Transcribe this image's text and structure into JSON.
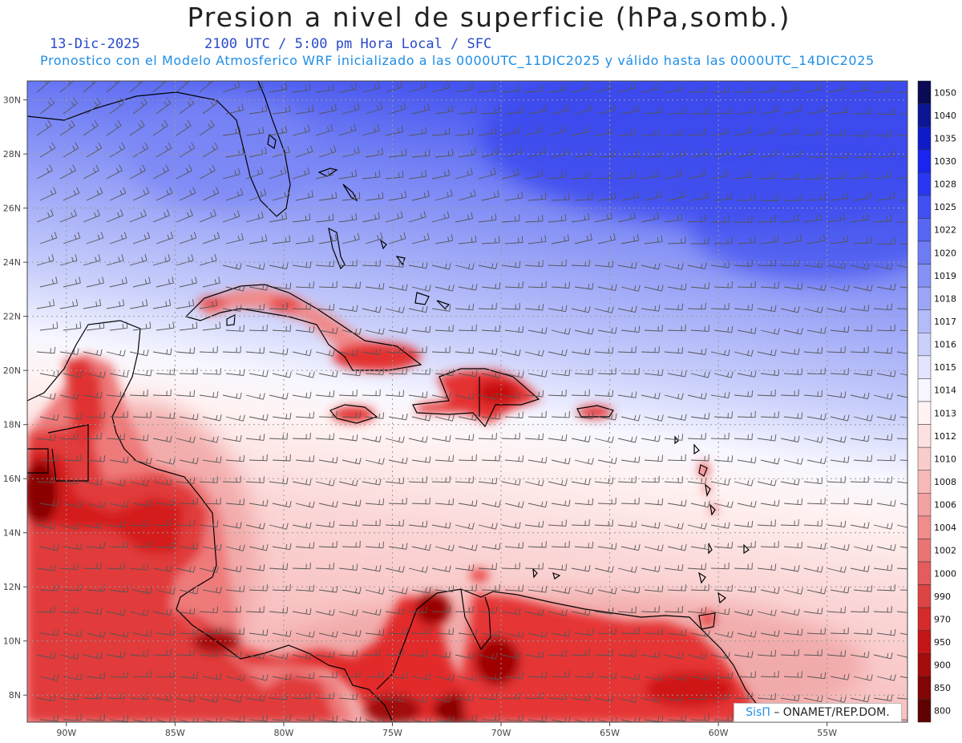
{
  "header": {
    "title": "Presion a nivel de superficie (hPa,somb.)",
    "date": "13-Dic-2025",
    "time_info": "2100 UTC / 5:00 pm Hora Local / SFC",
    "model_info": "Pronostico con el Modelo Atmosferico WRF inicializado a las 0000UTC_11DIC2025 y válido hasta las  0000UTC_14DIC2025"
  },
  "map": {
    "lat_labels": [
      "30N",
      "28N",
      "26N",
      "24N",
      "22N",
      "20N",
      "18N",
      "16N",
      "14N",
      "12N",
      "10N",
      "8N"
    ],
    "lon_labels": [
      "90W",
      "85W",
      "80W",
      "75W",
      "70W",
      "65W",
      "60W",
      "55W"
    ],
    "lat_range": [
      7,
      30.7
    ],
    "lon_range": [
      -91.8,
      -51.3
    ],
    "gridlines": true,
    "colors": {
      "high_pressure": "#3355ee",
      "neutral": "#ffffff",
      "low_pressure": "#e01010",
      "coastline": "#000000",
      "wind_barb": "#666666"
    }
  },
  "legend": {
    "labels": [
      "1050",
      "1040",
      "1035",
      "1030",
      "1028",
      "1025",
      "1022",
      "1020",
      "1019",
      "1018",
      "1017",
      "1016",
      "1015",
      "1014",
      "1013",
      "1012",
      "1010",
      "1008",
      "1006",
      "1004",
      "1002",
      "1000",
      "990",
      "970",
      "950",
      "900",
      "850",
      "800"
    ],
    "colors": [
      "#0a0a55",
      "#0c1594",
      "#0f1bc7",
      "#1825ee",
      "#2838f0",
      "#3f4ff1",
      "#5766f3",
      "#6e7cf4",
      "#8591f5",
      "#9ca6f7",
      "#b3bbf9",
      "#cad0fb",
      "#e2e5fd",
      "#f7f7ff",
      "#fff3f3",
      "#fde0e0",
      "#facccc",
      "#f7b8b8",
      "#f3a2a2",
      "#ef8c8c",
      "#ea7474",
      "#e45c5c",
      "#dd4444",
      "#d42a2a",
      "#c41616",
      "#a50c0c",
      "#820505",
      "#5e0202"
    ]
  },
  "credit": {
    "brand": "SisΠ",
    "text": "– ONAMET/REP.DOM."
  }
}
